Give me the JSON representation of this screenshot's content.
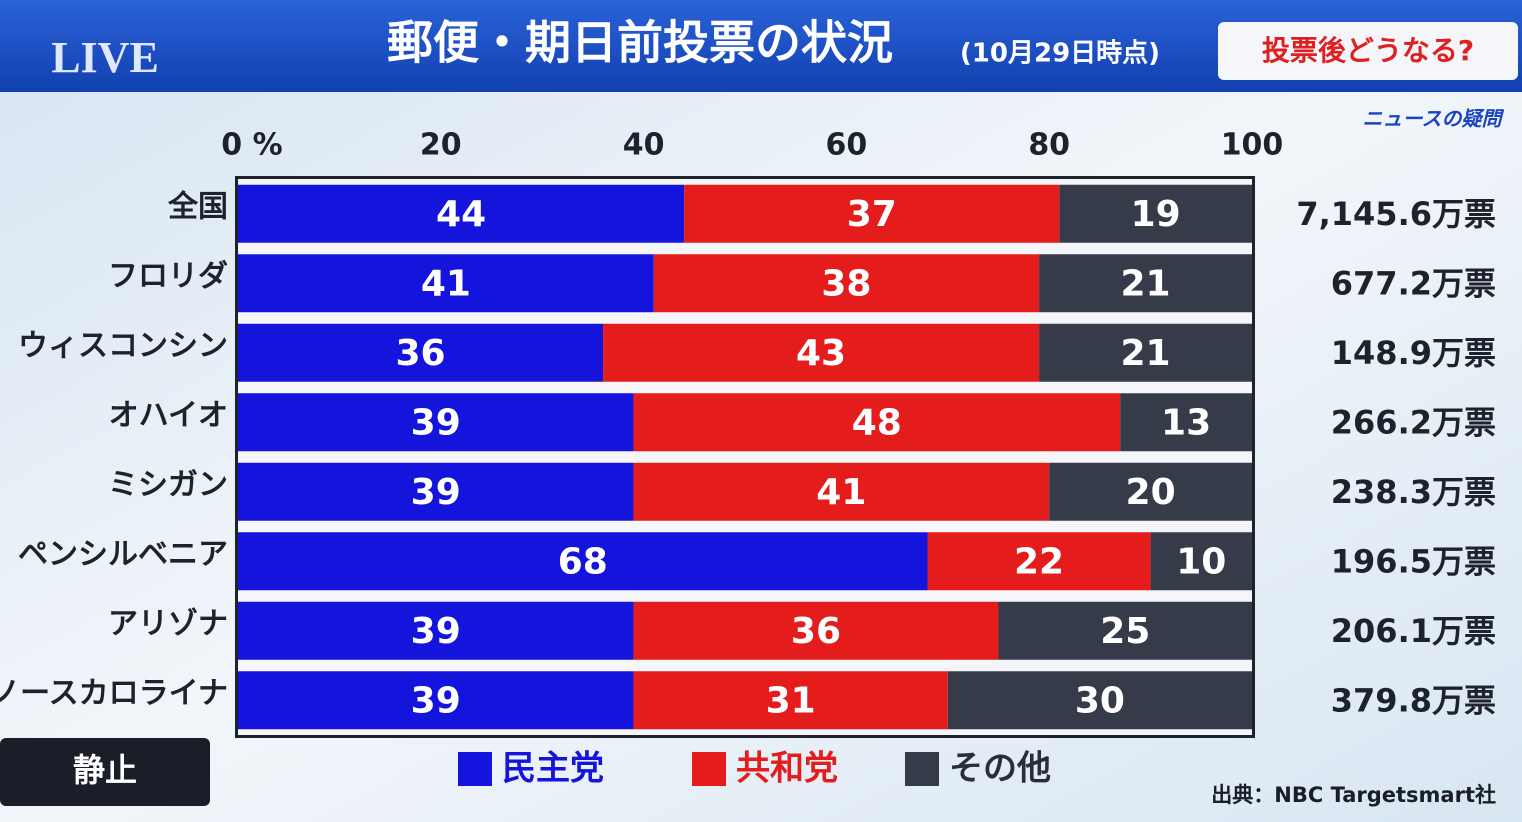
{
  "header": {
    "live": "LIVE",
    "title": "郵便・期日前投票の状況",
    "subtitle": "(10月29日時点)",
    "tag": "投票後どうなる?",
    "logo": "ニュースの疑問"
  },
  "button": "静止",
  "chart_data": {
    "type": "stacked_bar_horizontal",
    "categories": [
      "全国",
      "フロリダ",
      "ウィスコンシン",
      "オハイオ",
      "ミシガン",
      "ペンシルベニア",
      "アリゾナ",
      "ノースカロライナ"
    ],
    "series": [
      {
        "name": "民主党",
        "color": "#1414dc",
        "values": [
          44,
          41,
          36,
          39,
          39,
          68,
          39,
          39
        ]
      },
      {
        "name": "共和党",
        "color": "#e41c1c",
        "values": [
          37,
          38,
          43,
          48,
          41,
          22,
          36,
          31
        ]
      },
      {
        "name": "その他",
        "color": "#363b4a",
        "values": [
          19,
          21,
          21,
          13,
          20,
          10,
          25,
          30
        ]
      }
    ],
    "xlim": [
      0,
      100
    ],
    "xticks": [
      {
        "value": 0,
        "label": "0 %"
      },
      20,
      40,
      60,
      80,
      100
    ],
    "totals": [
      "7,145.6万票",
      "677.2万票",
      "148.9万票",
      "266.2万票",
      "238.3万票",
      "196.5万票",
      "206.1万票",
      "379.8万票"
    ],
    "source": "出典：NBC Targetsmart社"
  }
}
